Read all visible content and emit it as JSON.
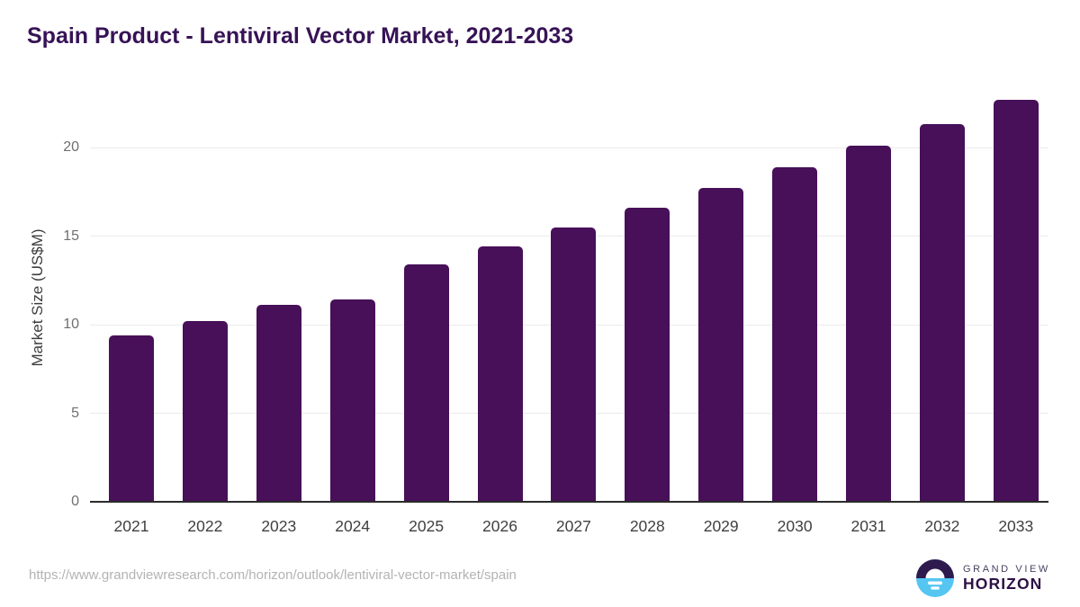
{
  "title": "Spain Product - Lentiviral Vector Market, 2021-2033",
  "footer": {
    "source_url": "https://www.grandviewresearch.com/horizon/outlook/lentiviral-vector-market/spain"
  },
  "logo": {
    "line1": "GRAND VIEW",
    "line2": "HORIZON",
    "icon": "horizon-sun-icon"
  },
  "colors": {
    "bar": "#471058",
    "title_text": "#371356",
    "axis_line": "#2b2b2b",
    "gridline": "#ebebeb",
    "ytick_text": "#6f6f6f",
    "xlabel_text": "#404040",
    "url_text": "#b3b3b3",
    "logo_dark": "#2e1a4d",
    "logo_blue": "#55c6f2"
  },
  "chart_data": {
    "type": "bar",
    "title": "Spain Product - Lentiviral Vector Market, 2021-2033",
    "categories": [
      "2021",
      "2022",
      "2023",
      "2024",
      "2025",
      "2026",
      "2027",
      "2028",
      "2029",
      "2030",
      "2031",
      "2032",
      "2033"
    ],
    "values": [
      9.4,
      10.2,
      11.1,
      11.4,
      13.4,
      14.4,
      15.5,
      16.6,
      17.7,
      18.9,
      20.1,
      21.3,
      22.7
    ],
    "xlabel": "",
    "ylabel": "Market Size (US$M)",
    "yticks": [
      0,
      5,
      10,
      15,
      20
    ],
    "ylim": [
      0,
      23.3
    ],
    "grid": true,
    "legend": false,
    "bar_color": "#471058"
  }
}
